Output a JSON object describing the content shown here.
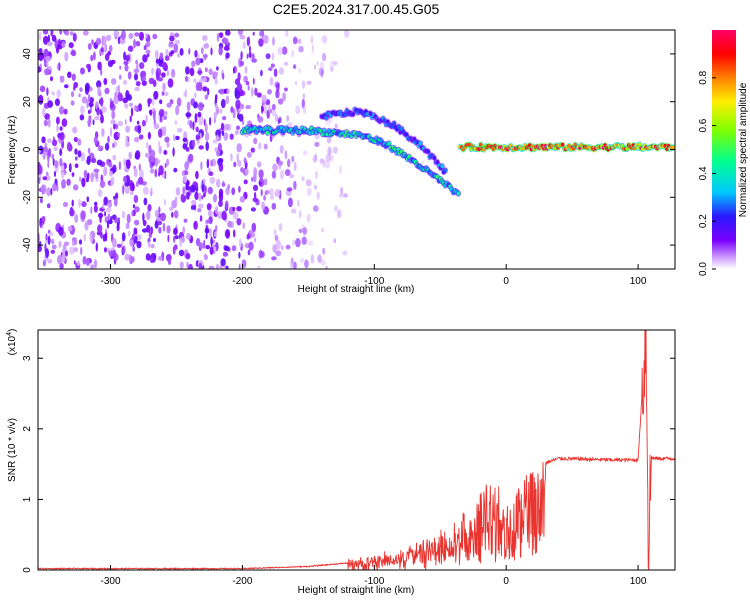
{
  "figure_title": "C2E5.2024.317.00.45.G05",
  "chart_data": [
    {
      "type": "heatmap",
      "name": "spectrogram",
      "xlabel": "Height of straight line (km)",
      "ylabel": "Frequency (Hz)",
      "xlim": [
        -355,
        128
      ],
      "ylim": [
        -50,
        50
      ],
      "xticks": [
        -300,
        -200,
        -100,
        0,
        100
      ],
      "yticks": [
        -40,
        -20,
        0,
        20,
        40
      ],
      "colorbar": {
        "label": "Normalized spectral amplitude",
        "range": [
          0,
          1
        ],
        "ticks": [
          "0.0",
          "0.2",
          "0.4",
          "0.6",
          "0.8"
        ],
        "colormap": [
          "#ffffff",
          "#cc99ff",
          "#7a00ff",
          "#2a18ff",
          "#00c8ff",
          "#00ff90",
          "#7fff00",
          "#ffee00",
          "#ff8000",
          "#ff0000",
          "#ff0066"
        ]
      },
      "features": [
        {
          "type": "noise-scatter",
          "x_range": [
            -355,
            -120
          ],
          "freq_range": [
            -50,
            50
          ],
          "amplitude": 0.2
        },
        {
          "type": "band",
          "x": [
            -200,
            -150,
            -110,
            -90,
            -70,
            -45,
            -35
          ],
          "freq": [
            8,
            8,
            6,
            2,
            -5,
            -15,
            -20
          ],
          "amplitude": 0.45
        },
        {
          "type": "band",
          "x": [
            -140,
            -110,
            -85,
            -65,
            -45
          ],
          "freq": [
            14,
            16,
            10,
            2,
            -10
          ],
          "amplitude": 0.35
        },
        {
          "type": "band",
          "x": [
            -35,
            0,
            50,
            100,
            128
          ],
          "freq": [
            1,
            1,
            1,
            1,
            1
          ],
          "amplitude": 0.85
        }
      ]
    },
    {
      "type": "line",
      "name": "snr",
      "xlabel": "Height of straight line (km)",
      "ylabel": "SNR (10 * v/v)",
      "y_multiplier": "(x10",
      "y_multiplier_exp": "4",
      "xlim": [
        -355,
        128
      ],
      "ylim": [
        0,
        3.4
      ],
      "xticks": [
        -300,
        -200,
        -100,
        0,
        100
      ],
      "yticks": [
        0,
        1,
        2,
        3
      ],
      "color": "#e8332e",
      "envelope": {
        "x": [
          -355,
          -300,
          -200,
          -150,
          -120,
          -100,
          -80,
          -60,
          -40,
          -30,
          -20,
          -15,
          -10,
          0,
          10,
          20,
          30,
          40,
          60,
          80,
          100,
          104,
          106,
          108,
          110,
          112,
          128
        ],
        "y": [
          0.02,
          0.02,
          0.02,
          0.05,
          0.1,
          0.16,
          0.25,
          0.4,
          0.6,
          0.8,
          1.0,
          1.2,
          1.25,
          1.0,
          1.2,
          1.4,
          1.52,
          1.58,
          1.57,
          1.56,
          1.56,
          2.8,
          3.4,
          0.3,
          1.6,
          1.58,
          1.58
        ]
      }
    }
  ]
}
